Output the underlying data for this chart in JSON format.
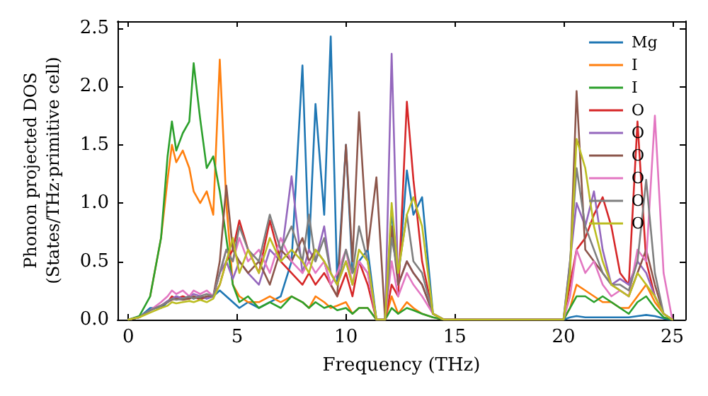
{
  "chart_data": {
    "type": "line",
    "xlabel": "Frequency (THz)",
    "ylabel": "Phonon projected DOS\n(States/THz·primitive cell)",
    "x": [
      0,
      0.5,
      1,
      1.5,
      1.8,
      2,
      2.2,
      2.5,
      2.8,
      3,
      3.3,
      3.6,
      3.9,
      4.2,
      4.5,
      4.8,
      5.1,
      5.5,
      6,
      6.5,
      7,
      7.5,
      8,
      8.3,
      8.6,
      9,
      9.3,
      9.6,
      10,
      10.3,
      10.6,
      11,
      11.4,
      11.8,
      12.1,
      12.4,
      12.8,
      13.1,
      13.5,
      14,
      14.5,
      15,
      20,
      20.3,
      20.6,
      21,
      21.4,
      21.8,
      22.2,
      22.6,
      23,
      23.4,
      23.8,
      24.2,
      24.6,
      25
    ],
    "xlim": [
      -0.5,
      25.6
    ],
    "xticks": [
      0,
      5,
      10,
      15,
      20,
      25
    ],
    "ylim": [
      0,
      2.56
    ],
    "yticks": [
      {
        "value": 0,
        "label": "0.0"
      },
      {
        "value": 0.5,
        "label": "0.5"
      },
      {
        "value": 1,
        "label": "1.0"
      },
      {
        "value": 1.5,
        "label": "1.5"
      },
      {
        "value": 2,
        "label": "2.0"
      },
      {
        "value": 2.5,
        "label": "2.5"
      }
    ],
    "grid": false,
    "legend": "top right",
    "marker": "none",
    "line_style": "solid",
    "series": [
      {
        "name": "Mg",
        "color": "#1f77b4",
        "values": [
          0,
          0.02,
          0.1,
          0.1,
          0.15,
          0.18,
          0.2,
          0.18,
          0.2,
          0.18,
          0.2,
          0.18,
          0.2,
          0.25,
          0.2,
          0.15,
          0.1,
          0.15,
          0.1,
          0.15,
          0.2,
          0.5,
          2.18,
          0.6,
          1.85,
          0.9,
          2.43,
          0.3,
          1.5,
          0.4,
          0.5,
          0.6,
          0,
          0,
          0.94,
          0.3,
          1.28,
          0.9,
          1.05,
          0.05,
          0,
          0,
          0,
          0.02,
          0.03,
          0.02,
          0.02,
          0.02,
          0.02,
          0.02,
          0.02,
          0.03,
          0.04,
          0.03,
          0.01,
          0
        ]
      },
      {
        "name": "I",
        "color": "#ff7f0e",
        "values": [
          null,
          null,
          0.2,
          0.7,
          1.2,
          1.5,
          1.35,
          1.45,
          1.3,
          1.1,
          1.0,
          1.1,
          0.9,
          2.23,
          1.0,
          0.3,
          0.2,
          0.15,
          0.15,
          0.2,
          0.15,
          0.2,
          0.15,
          0.1,
          0.2,
          0.15,
          0.1,
          0.12,
          0.15,
          0.05,
          0.1,
          0.1,
          0,
          0,
          0.2,
          0.05,
          0.15,
          0.1,
          0.05,
          0.02,
          0,
          0,
          0,
          0.1,
          0.3,
          0.25,
          0.2,
          0.15,
          0.15,
          0.1,
          0.1,
          0.2,
          0.3,
          0.15,
          0.05,
          0
        ]
      },
      {
        "name": "I",
        "color": "#2ca02c",
        "values": [
          0,
          0.03,
          0.2,
          0.7,
          1.4,
          1.7,
          1.45,
          1.6,
          1.7,
          2.2,
          1.72,
          1.3,
          1.4,
          1.1,
          0.7,
          0.3,
          0.15,
          0.2,
          0.1,
          0.15,
          0.1,
          0.2,
          0.15,
          0.1,
          0.15,
          0.1,
          0.12,
          0.08,
          0.1,
          0.05,
          0.1,
          0.1,
          0,
          0,
          0.1,
          0.05,
          0.1,
          0.08,
          0.05,
          0.02,
          0,
          0,
          0,
          0.1,
          0.2,
          0.2,
          0.15,
          0.2,
          0.15,
          0.1,
          0.05,
          0.15,
          0.2,
          0.1,
          0.02,
          0
        ]
      },
      {
        "name": "O",
        "color": "#d62728",
        "values": [
          null,
          null,
          null,
          0.12,
          0.15,
          0.2,
          0.18,
          0.2,
          0.18,
          0.2,
          0.17,
          0.2,
          0.2,
          0.3,
          0.5,
          0.6,
          0.85,
          0.6,
          0.4,
          0.85,
          0.5,
          0.4,
          0.3,
          0.4,
          0.3,
          0.4,
          0.3,
          0.2,
          0.4,
          0.2,
          0.5,
          0.3,
          0,
          0,
          0.3,
          0.2,
          1.87,
          1.2,
          0.5,
          0.05,
          0,
          0,
          0,
          0.3,
          0.6,
          0.7,
          0.9,
          1.05,
          0.8,
          0.4,
          0.3,
          1.7,
          0.5,
          0.2,
          0.05,
          0
        ]
      },
      {
        "name": "O",
        "color": "#9467bd",
        "values": [
          0,
          0.02,
          0.08,
          0.12,
          0.16,
          0.18,
          0.2,
          0.18,
          0.2,
          0.22,
          0.2,
          0.18,
          0.2,
          0.4,
          0.5,
          0.35,
          0.5,
          0.4,
          0.3,
          0.6,
          0.5,
          1.23,
          0.4,
          0.6,
          0.5,
          0.8,
          0.4,
          0.3,
          0.5,
          0.3,
          0.5,
          0.4,
          0,
          0,
          2.28,
          0.3,
          0.5,
          0.4,
          0.3,
          0.05,
          0,
          0,
          0,
          0.5,
          1.0,
          0.8,
          1.1,
          0.6,
          0.3,
          0.35,
          0.3,
          0.5,
          0.4,
          0.2,
          0.05,
          0
        ]
      },
      {
        "name": "O",
        "color": "#8c564b",
        "values": [
          0,
          0.02,
          0.08,
          0.12,
          0.15,
          0.17,
          0.18,
          0.17,
          0.18,
          0.2,
          0.18,
          0.2,
          0.2,
          0.5,
          1.15,
          0.6,
          0.5,
          0.4,
          0.5,
          0.3,
          0.6,
          0.5,
          0.7,
          0.5,
          0.6,
          0.5,
          0.3,
          0.2,
          1.5,
          0.5,
          1.78,
          0.6,
          1.22,
          0,
          0.8,
          0.3,
          0.5,
          0.4,
          0.3,
          0.05,
          0,
          0,
          0,
          0.4,
          1.96,
          0.6,
          0.5,
          0.4,
          0.3,
          0.25,
          0.2,
          0.4,
          0.6,
          0.3,
          0.05,
          0
        ]
      },
      {
        "name": "O",
        "color": "#e377c2",
        "values": [
          0,
          0.02,
          0.08,
          0.15,
          0.2,
          0.25,
          0.22,
          0.25,
          0.2,
          0.25,
          0.22,
          0.25,
          0.2,
          0.4,
          0.6,
          0.5,
          0.7,
          0.5,
          0.6,
          0.4,
          0.7,
          0.5,
          0.4,
          0.5,
          0.4,
          0.5,
          0.3,
          0.4,
          0.6,
          0.3,
          0.5,
          0.4,
          0,
          0,
          0.5,
          0.2,
          0.4,
          0.3,
          0.2,
          0.05,
          0,
          0,
          0,
          0.2,
          0.6,
          0.4,
          0.5,
          0.3,
          0.2,
          0.25,
          0.2,
          0.6,
          0.5,
          1.75,
          0.4,
          0
        ]
      },
      {
        "name": "O",
        "color": "#7f7f7f",
        "values": [
          0,
          0.02,
          0.08,
          0.12,
          0.15,
          0.18,
          0.17,
          0.18,
          0.2,
          0.18,
          0.2,
          0.22,
          0.2,
          0.4,
          0.6,
          0.5,
          0.8,
          0.6,
          0.5,
          0.9,
          0.6,
          0.8,
          0.5,
          0.9,
          0.5,
          0.7,
          0.4,
          0.3,
          0.6,
          0.4,
          0.8,
          0.5,
          0,
          0,
          0.7,
          0.4,
          0.9,
          0.5,
          0.4,
          0.05,
          0,
          0,
          0,
          0.5,
          1.3,
          0.8,
          0.6,
          0.4,
          0.3,
          0.3,
          0.25,
          0.5,
          1.2,
          0.4,
          0.05,
          0
        ]
      },
      {
        "name": "O",
        "color": "#bcbd22",
        "values": [
          0,
          0.02,
          0.06,
          0.1,
          0.12,
          0.15,
          0.14,
          0.15,
          0.16,
          0.15,
          0.17,
          0.15,
          0.18,
          0.3,
          0.5,
          0.7,
          0.4,
          0.6,
          0.4,
          0.7,
          0.5,
          0.6,
          0.5,
          0.4,
          0.6,
          0.5,
          0.4,
          0.3,
          0.5,
          0.3,
          0.6,
          0.5,
          0,
          0,
          1.0,
          0.4,
          0.9,
          1.05,
          0.8,
          0.05,
          0,
          0,
          0,
          0.4,
          1.55,
          1.3,
          0.8,
          0.5,
          0.3,
          0.25,
          0.2,
          0.4,
          0.3,
          0.2,
          0.05,
          0
        ]
      }
    ]
  }
}
